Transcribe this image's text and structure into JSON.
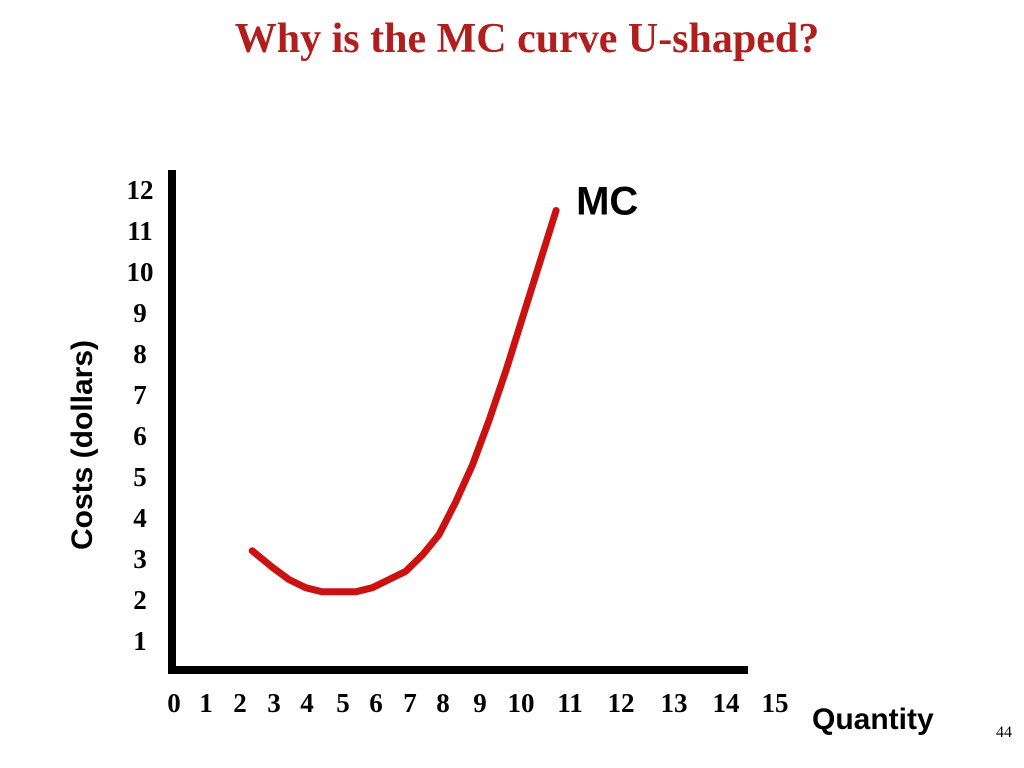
{
  "slide": {
    "title": "Why is the MC curve U-shaped?",
    "page_number": "44"
  },
  "chart_data": {
    "type": "line",
    "ylabel": "Costs (dollars)",
    "xlabel": "Quantity",
    "x_ticks": [
      "0",
      "1",
      "2",
      "3",
      "4",
      "5",
      "6",
      "7",
      "8",
      "9",
      "10",
      "11",
      "12",
      "13",
      "14",
      "15"
    ],
    "y_ticks": [
      "1",
      "2",
      "3",
      "4",
      "5",
      "6",
      "7",
      "8",
      "9",
      "10",
      "11",
      "12"
    ],
    "xlim": [
      0,
      15
    ],
    "ylim": [
      0,
      12
    ],
    "grid": false,
    "series": [
      {
        "name": "MC",
        "color": "#cc1111",
        "x": [
          2.4,
          3.0,
          3.5,
          4.0,
          4.5,
          5.0,
          5.5,
          6.0,
          6.5,
          7.0,
          7.5,
          8.0,
          8.5,
          9.0,
          9.5,
          10.0,
          10.5,
          11.0,
          11.5
        ],
        "y": [
          3.2,
          2.8,
          2.5,
          2.3,
          2.2,
          2.2,
          2.2,
          2.3,
          2.5,
          2.7,
          3.1,
          3.6,
          4.4,
          5.3,
          6.4,
          7.6,
          8.9,
          10.2,
          11.5
        ]
      }
    ]
  }
}
